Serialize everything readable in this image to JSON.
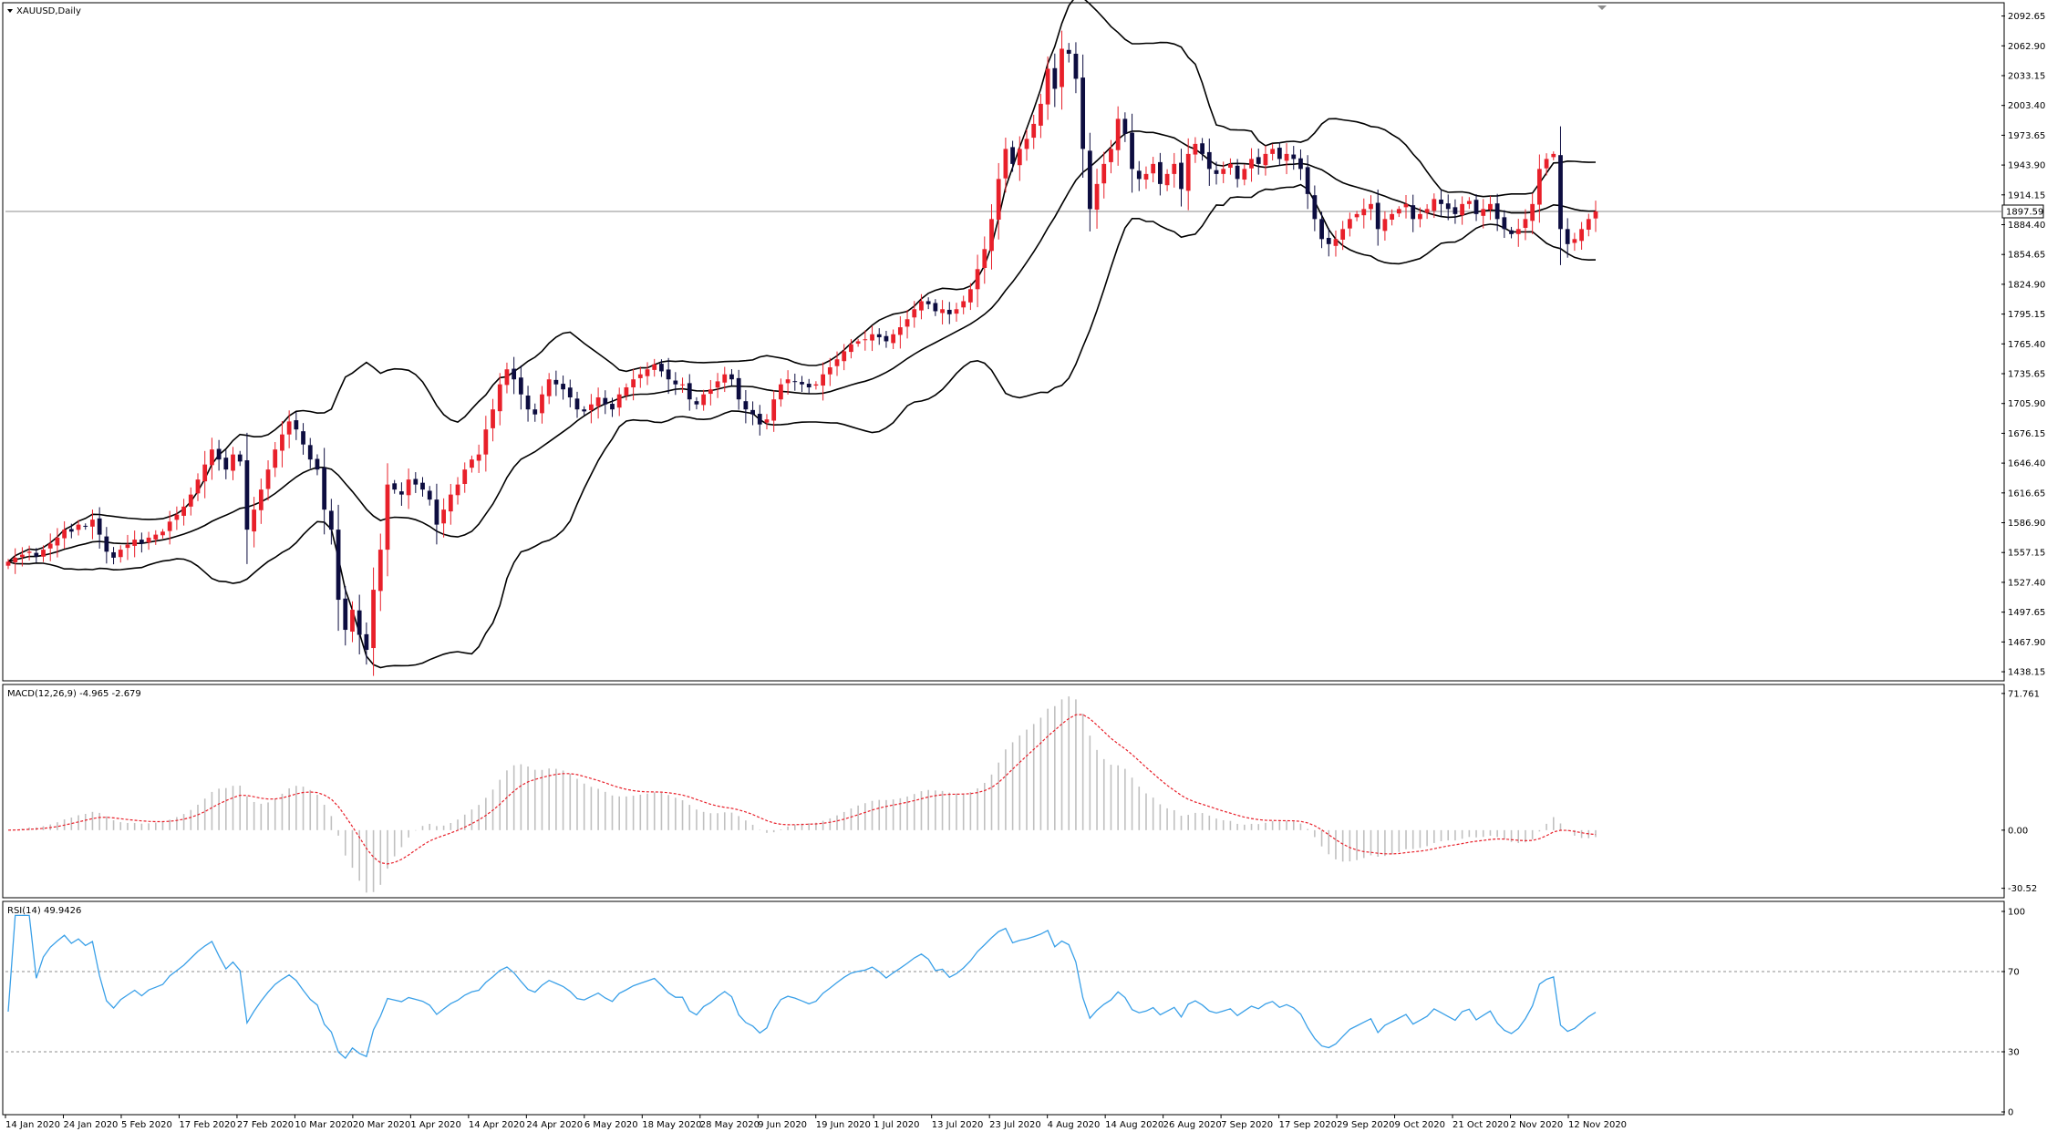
{
  "window": {
    "symbol_title": "XAUUSD,Daily"
  },
  "colors": {
    "bull": "#e8202a",
    "bear": "#0d0d40",
    "band": "#000000",
    "macd_hist": "#c0c0c0",
    "macd_signal": "#e8202a",
    "rsi": "#3aa0e8",
    "level_line": "#8c8c8c",
    "frame": "#000000"
  },
  "chart_data": [
    {
      "type": "candlestick",
      "title": "XAUUSD,Daily",
      "indicator": "Bollinger Bands (20)",
      "current_price": "1897.59",
      "current_price_value": 1897.59,
      "ylim": [
        1430,
        2105
      ],
      "y_ticks": [
        "2092.65",
        "2062.90",
        "2033.15",
        "2003.40",
        "1973.65",
        "1943.90",
        "1914.15",
        "1884.40",
        "1854.65",
        "1824.90",
        "1795.15",
        "1765.40",
        "1735.65",
        "1705.90",
        "1676.15",
        "1646.40",
        "1616.65",
        "1586.90",
        "1557.15",
        "1527.40",
        "1497.65",
        "1467.90",
        "1438.15"
      ],
      "x_labels": [
        "14 Jan 2020",
        "24 Jan 2020",
        "5 Feb 2020",
        "17 Feb 2020",
        "27 Feb 2020",
        "10 Mar 2020",
        "20 Mar 2020",
        "1 Apr 2020",
        "14 Apr 2020",
        "24 Apr 2020",
        "6 May 2020",
        "18 May 2020",
        "28 May 2020",
        "9 Jun 2020",
        "19 Jun 2020",
        "1 Jul 2020",
        "13 Jul 2020",
        "23 Jul 2020",
        "4 Aug 2020",
        "14 Aug 2020",
        "26 Aug 2020",
        "7 Sep 2020",
        "17 Sep 2020",
        "29 Sep 2020",
        "9 Oct 2020",
        "21 Oct 2020",
        "2 Nov 2020",
        "12 Nov 2020"
      ],
      "close_series": [
        1548,
        1552,
        1555,
        1558,
        1553,
        1560,
        1566,
        1572,
        1580,
        1578,
        1585,
        1583,
        1590,
        1575,
        1558,
        1552,
        1560,
        1565,
        1570,
        1566,
        1572,
        1575,
        1578,
        1588,
        1595,
        1603,
        1615,
        1630,
        1645,
        1660,
        1650,
        1640,
        1655,
        1648,
        1580,
        1600,
        1620,
        1640,
        1660,
        1675,
        1688,
        1680,
        1665,
        1650,
        1640,
        1600,
        1580,
        1510,
        1480,
        1500,
        1475,
        1460,
        1520,
        1560,
        1625,
        1620,
        1615,
        1630,
        1625,
        1620,
        1610,
        1585,
        1600,
        1615,
        1625,
        1640,
        1650,
        1655,
        1680,
        1700,
        1725,
        1740,
        1730,
        1715,
        1700,
        1695,
        1715,
        1730,
        1725,
        1720,
        1712,
        1700,
        1698,
        1705,
        1712,
        1705,
        1700,
        1715,
        1722,
        1730,
        1735,
        1740,
        1745,
        1738,
        1730,
        1725,
        1725,
        1710,
        1705,
        1715,
        1720,
        1728,
        1735,
        1730,
        1710,
        1700,
        1695,
        1685,
        1690,
        1710,
        1725,
        1730,
        1728,
        1725,
        1722,
        1725,
        1735,
        1742,
        1750,
        1758,
        1765,
        1768,
        1770,
        1775,
        1772,
        1768,
        1775,
        1782,
        1790,
        1800,
        1808,
        1805,
        1798,
        1800,
        1795,
        1800,
        1808,
        1820,
        1840,
        1860,
        1890,
        1930,
        1960,
        1945,
        1960,
        1970,
        1985,
        2005,
        2040,
        2020,
        2060,
        2055,
        2030,
        1960,
        1900,
        1925,
        1945,
        1960,
        1990,
        1975,
        1940,
        1930,
        1935,
        1945,
        1925,
        1935,
        1945,
        1920,
        1955,
        1965,
        1955,
        1940,
        1935,
        1940,
        1945,
        1930,
        1940,
        1950,
        1945,
        1955,
        1960,
        1950,
        1955,
        1950,
        1940,
        1915,
        1890,
        1870,
        1865,
        1870,
        1880,
        1890,
        1895,
        1900,
        1905,
        1880,
        1890,
        1895,
        1900,
        1905,
        1890,
        1895,
        1900,
        1910,
        1905,
        1900,
        1895,
        1905,
        1908,
        1895,
        1900,
        1905,
        1890,
        1880,
        1875,
        1880,
        1890,
        1905,
        1940,
        1950,
        1955,
        1880,
        1865,
        1870,
        1880,
        1890,
        1897.59
      ],
      "bands": {
        "period": 20,
        "notes": "upper, middle and lower bands computed from close_series"
      }
    },
    {
      "type": "bar",
      "title": "MACD(12,26,9) -4.965 -2.679",
      "series_names": [
        "MACD",
        "Signal"
      ],
      "ylim": [
        -35,
        76
      ],
      "y_ticks": [
        "71.761",
        "0.00",
        "-30.52"
      ],
      "values_source": "computed from close_series (EMA 12, EMA 26, signal 9)"
    },
    {
      "type": "line",
      "title": "RSI(14) 49.9426",
      "ylim": [
        0,
        100
      ],
      "y_ticks": [
        "100",
        "70",
        "30",
        "0"
      ],
      "levels": [
        70,
        30
      ],
      "values_source": "computed from close_series (RSI 14)"
    }
  ]
}
